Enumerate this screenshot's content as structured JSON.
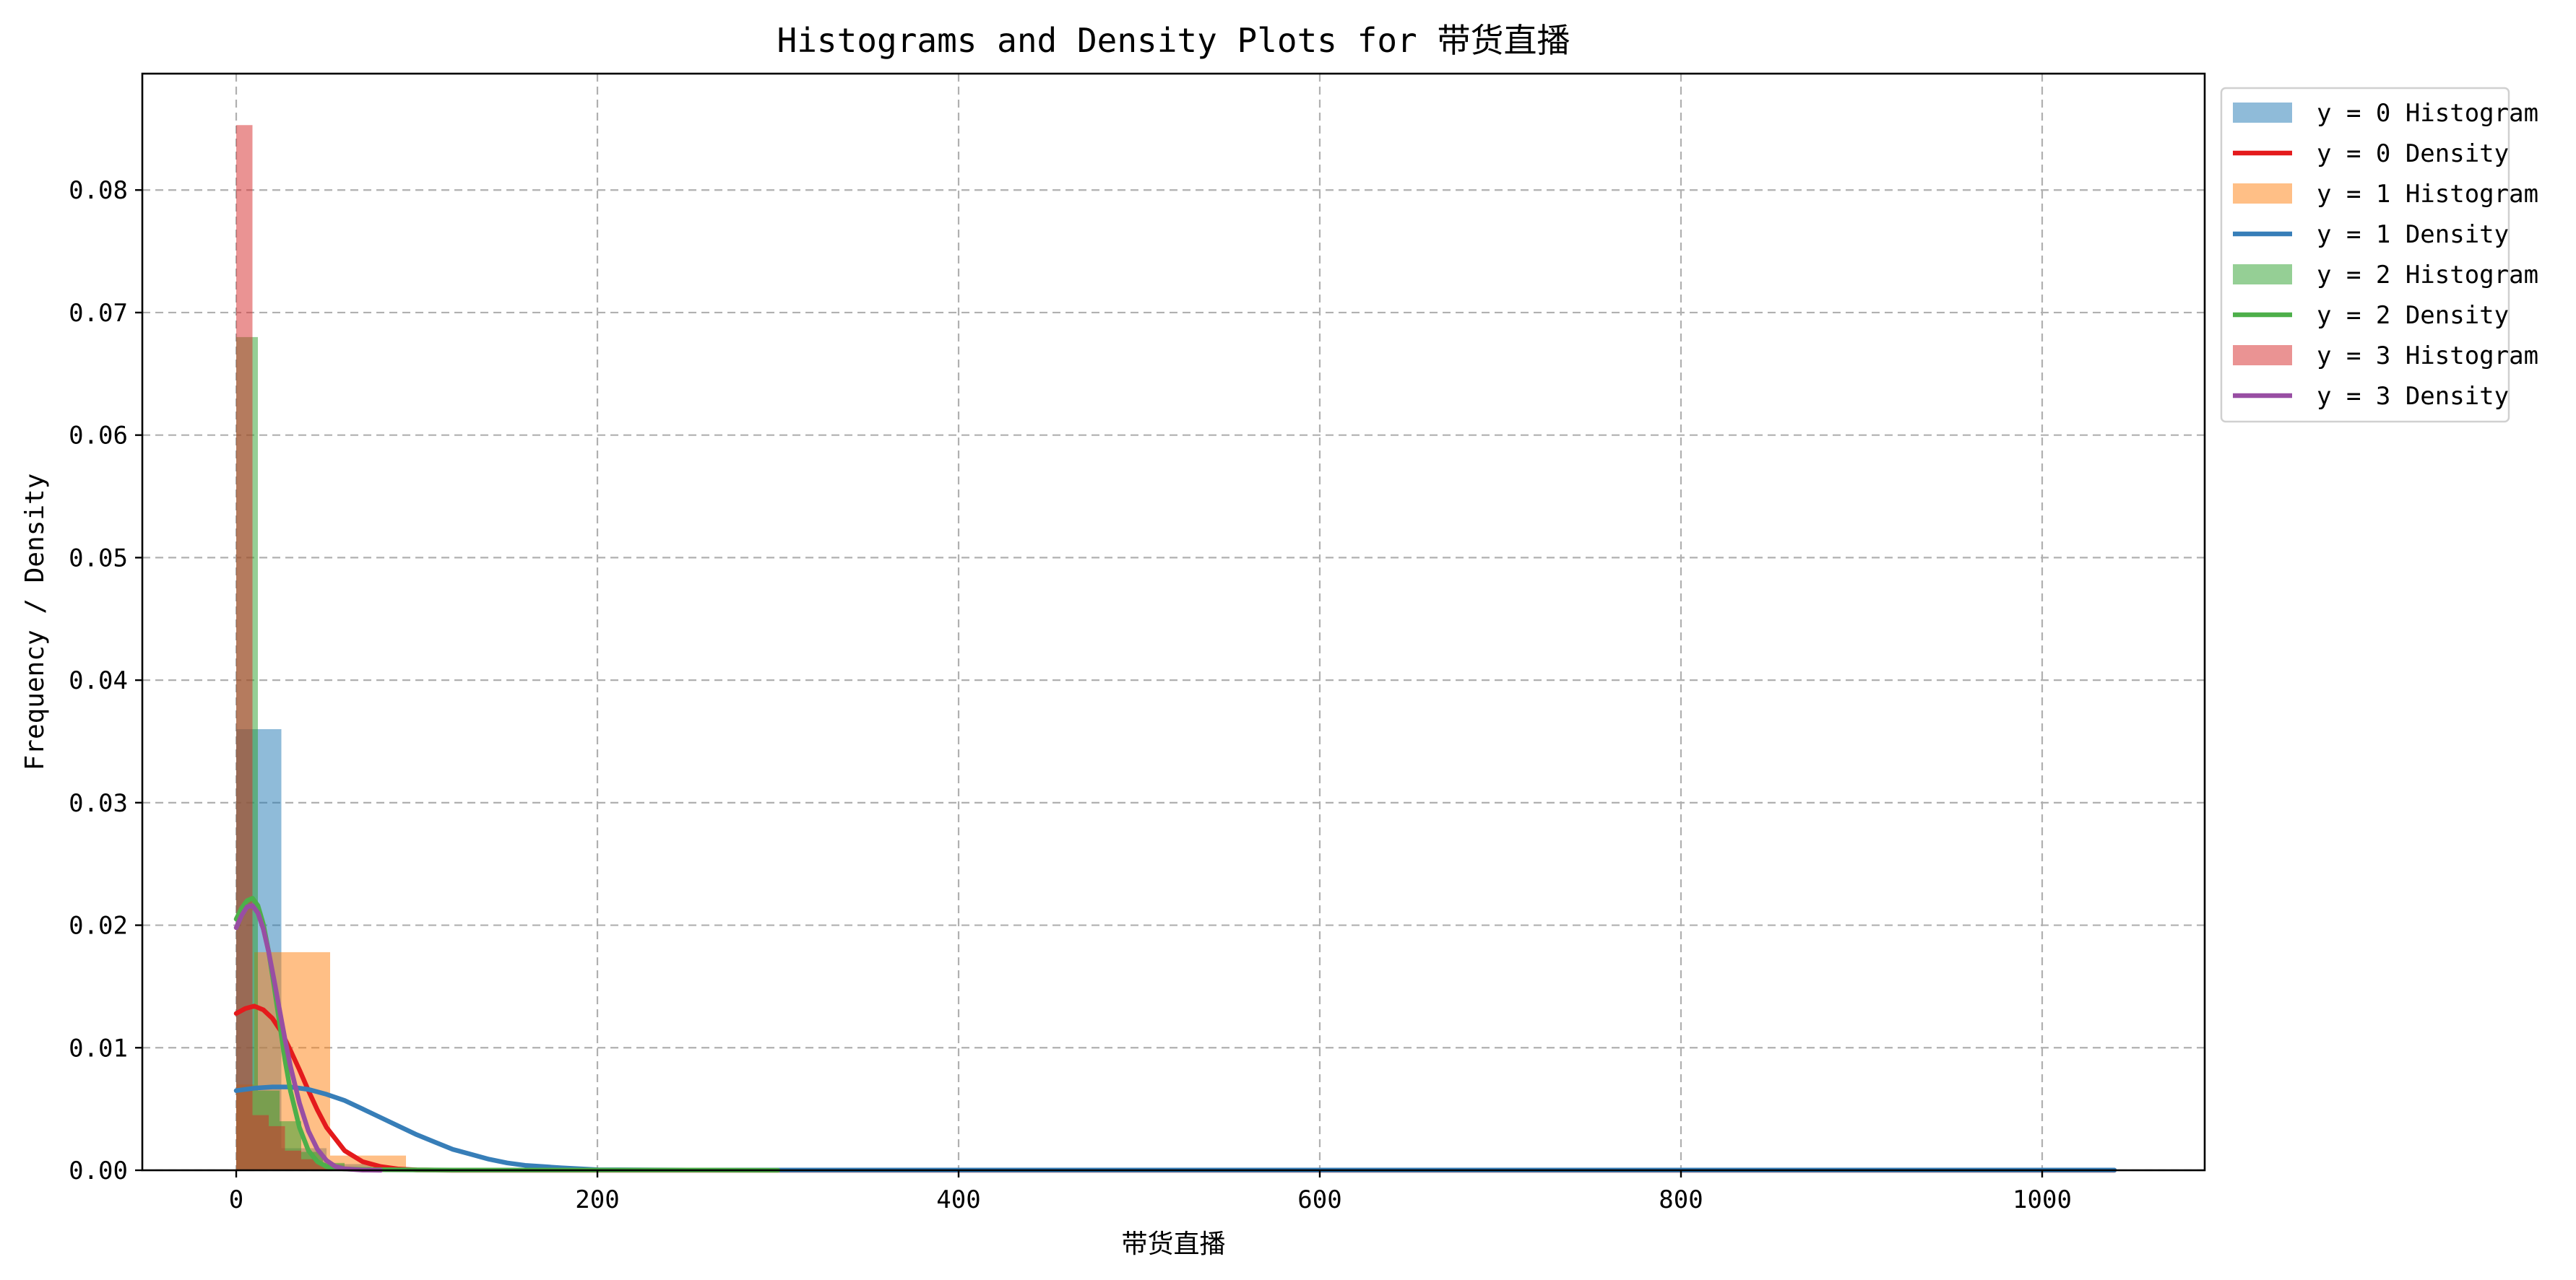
{
  "chart_data": {
    "type": "histogram+density",
    "title": "Histograms and Density Plots for 带货直播",
    "xlabel": "带货直播",
    "ylabel": "Frequency / Density",
    "xlim": [
      -52,
      1090
    ],
    "ylim": [
      0,
      0.0895
    ],
    "x_ticks": [
      0,
      200,
      400,
      600,
      800,
      1000
    ],
    "x_tick_labels": [
      "0",
      "200",
      "400",
      "600",
      "800",
      "1000"
    ],
    "y_ticks": [
      0,
      0.01,
      0.02,
      0.03,
      0.04,
      0.05,
      0.06,
      0.07,
      0.08
    ],
    "y_tick_labels": [
      "0.00",
      "0.01",
      "0.02",
      "0.03",
      "0.04",
      "0.05",
      "0.06",
      "0.07",
      "0.08"
    ],
    "grid": true,
    "legend_position": "outside-top-right",
    "histograms": [
      {
        "name": "y = 0 Histogram",
        "color": "#1f77b4",
        "bins": [
          {
            "x0": 0,
            "x1": 25,
            "value": 0.036
          },
          {
            "x0": 25,
            "x1": 50,
            "value": 0.0018
          },
          {
            "x0": 50,
            "x1": 75,
            "value": 0.0005
          }
        ]
      },
      {
        "name": "y = 1 Histogram",
        "color": "#ff7f0e",
        "bins": [
          {
            "x0": 0,
            "x1": 10,
            "value": 0.007
          },
          {
            "x0": 10,
            "x1": 52,
            "value": 0.0178
          },
          {
            "x0": 52,
            "x1": 94,
            "value": 0.0012
          }
        ]
      },
      {
        "name": "y = 2 Histogram",
        "color": "#2ca02c",
        "bins": [
          {
            "x0": 0,
            "x1": 12,
            "value": 0.068
          },
          {
            "x0": 12,
            "x1": 24,
            "value": 0.0065
          },
          {
            "x0": 24,
            "x1": 36,
            "value": 0.004
          },
          {
            "x0": 36,
            "x1": 48,
            "value": 0.0015
          },
          {
            "x0": 48,
            "x1": 60,
            "value": 0.0006
          }
        ]
      },
      {
        "name": "y = 3 Histogram",
        "color": "#d62728",
        "bins": [
          {
            "x0": 0,
            "x1": 9,
            "value": 0.0853
          },
          {
            "x0": 9,
            "x1": 18,
            "value": 0.0045
          },
          {
            "x0": 18,
            "x1": 27,
            "value": 0.0036
          },
          {
            "x0": 27,
            "x1": 36,
            "value": 0.0016
          },
          {
            "x0": 36,
            "x1": 45,
            "value": 0.0009
          },
          {
            "x0": 45,
            "x1": 54,
            "value": 0.0005
          },
          {
            "x0": 54,
            "x1": 63,
            "value": 0.0003
          }
        ]
      }
    ],
    "densities": [
      {
        "name": "y = 0 Density",
        "color": "#e41a1c",
        "points": [
          [
            0,
            0.0128
          ],
          [
            5,
            0.0132
          ],
          [
            10,
            0.0134
          ],
          [
            15,
            0.0131
          ],
          [
            20,
            0.0124
          ],
          [
            25,
            0.0113
          ],
          [
            30,
            0.0098
          ],
          [
            35,
            0.0082
          ],
          [
            40,
            0.0065
          ],
          [
            45,
            0.0049
          ],
          [
            50,
            0.0035
          ],
          [
            60,
            0.0016
          ],
          [
            70,
            0.0007
          ],
          [
            80,
            0.0003
          ],
          [
            90,
            0.0001
          ],
          [
            100,
            3e-05
          ],
          [
            120,
            0
          ],
          [
            1040,
            0
          ]
        ]
      },
      {
        "name": "y = 1 Density",
        "color": "#377eb8",
        "points": [
          [
            0,
            0.0065
          ],
          [
            10,
            0.0067
          ],
          [
            20,
            0.0068
          ],
          [
            30,
            0.0068
          ],
          [
            40,
            0.0066
          ],
          [
            50,
            0.0062
          ],
          [
            60,
            0.0057
          ],
          [
            70,
            0.005
          ],
          [
            80,
            0.0043
          ],
          [
            90,
            0.0036
          ],
          [
            100,
            0.0029
          ],
          [
            110,
            0.0023
          ],
          [
            120,
            0.0017
          ],
          [
            130,
            0.0013
          ],
          [
            140,
            0.0009
          ],
          [
            150,
            0.0006
          ],
          [
            160,
            0.0004
          ],
          [
            170,
            0.0003
          ],
          [
            180,
            0.0002
          ],
          [
            200,
            5e-05
          ],
          [
            250,
            2e-05
          ],
          [
            400,
            1e-05
          ],
          [
            1040,
            1e-05
          ]
        ]
      },
      {
        "name": "y = 2 Density",
        "color": "#4daf4a",
        "points": [
          [
            0,
            0.0205
          ],
          [
            3,
            0.0214
          ],
          [
            6,
            0.022
          ],
          [
            9,
            0.0222
          ],
          [
            12,
            0.0216
          ],
          [
            15,
            0.0201
          ],
          [
            18,
            0.0178
          ],
          [
            21,
            0.015
          ],
          [
            24,
            0.012
          ],
          [
            27,
            0.009
          ],
          [
            30,
            0.0065
          ],
          [
            35,
            0.0035
          ],
          [
            40,
            0.0016
          ],
          [
            45,
            0.0007
          ],
          [
            50,
            0.0003
          ],
          [
            60,
            0.0001
          ],
          [
            80,
            4e-05
          ],
          [
            120,
            2e-05
          ],
          [
            200,
            2e-05
          ],
          [
            260,
            2e-05
          ],
          [
            300,
            0
          ]
        ]
      },
      {
        "name": "y = 3 Density",
        "color": "#984ea3",
        "points": [
          [
            0,
            0.0198
          ],
          [
            3,
            0.0208
          ],
          [
            6,
            0.0215
          ],
          [
            9,
            0.0216
          ],
          [
            12,
            0.021
          ],
          [
            15,
            0.0197
          ],
          [
            18,
            0.0178
          ],
          [
            21,
            0.0155
          ],
          [
            24,
            0.0131
          ],
          [
            27,
            0.0107
          ],
          [
            30,
            0.0085
          ],
          [
            35,
            0.0055
          ],
          [
            40,
            0.0032
          ],
          [
            45,
            0.0017
          ],
          [
            50,
            0.0008
          ],
          [
            55,
            0.0003
          ],
          [
            60,
            0.00012
          ],
          [
            70,
            2e-05
          ],
          [
            80,
            0
          ]
        ]
      }
    ],
    "legend_order": [
      {
        "label": "y = 0 Histogram",
        "kind": "patch",
        "color": "#1f77b4"
      },
      {
        "label": "y = 0 Density",
        "kind": "line",
        "color": "#e41a1c"
      },
      {
        "label": "y = 1 Histogram",
        "kind": "patch",
        "color": "#ff7f0e"
      },
      {
        "label": "y = 1 Density",
        "kind": "line",
        "color": "#377eb8"
      },
      {
        "label": "y = 2 Histogram",
        "kind": "patch",
        "color": "#2ca02c"
      },
      {
        "label": "y = 2 Density",
        "kind": "line",
        "color": "#4daf4a"
      },
      {
        "label": "y = 3 Histogram",
        "kind": "patch",
        "color": "#d62728"
      },
      {
        "label": "y = 3 Density",
        "kind": "line",
        "color": "#984ea3"
      }
    ]
  }
}
